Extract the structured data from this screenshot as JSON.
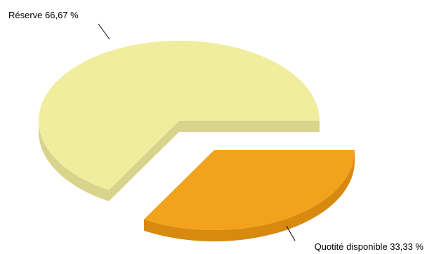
{
  "chart_data": {
    "type": "pie",
    "title": "",
    "slices": [
      {
        "label": "Réserve 66,67 %",
        "value": 66.67,
        "color": "#F0EE9E",
        "side_color": "#D8D48C",
        "exploded": false
      },
      {
        "label": "Quotité disponible 33,33 %",
        "value": 33.33,
        "color": "#F2A21C",
        "side_color": "#D88A10",
        "exploded": true
      }
    ],
    "three_d": true,
    "legend": "none"
  }
}
